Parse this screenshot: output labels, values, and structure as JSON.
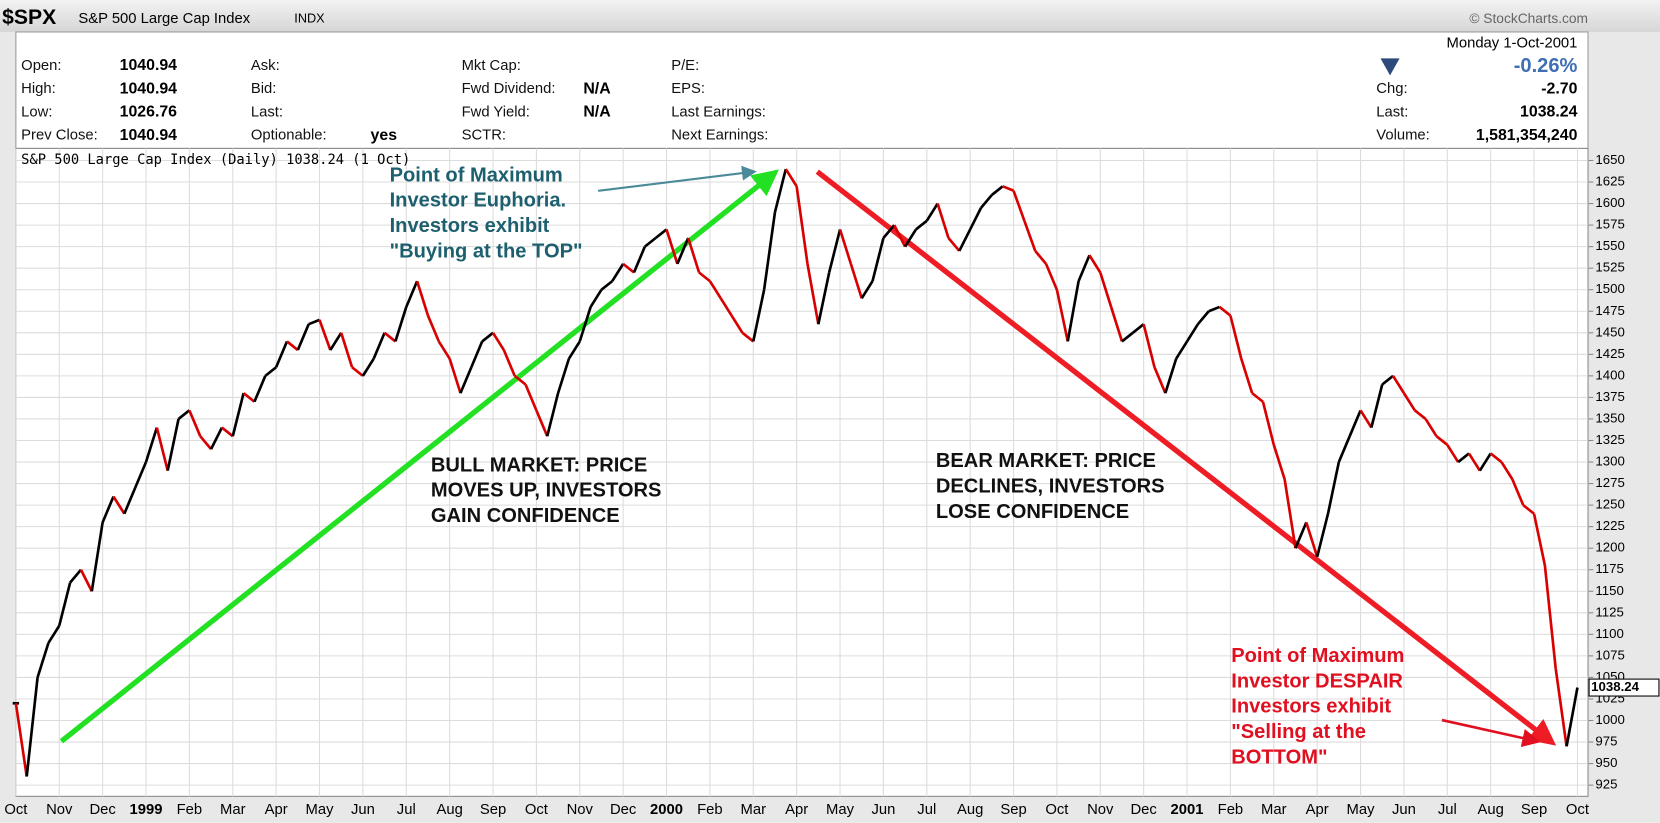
{
  "header": {
    "symbol": "$SPX",
    "name": "S&P 500 Large Cap Index",
    "exchange": "INDX",
    "copyright": "© StockCharts.com"
  },
  "info": {
    "columns": [
      [
        {
          "label": "Open:",
          "value": "1040.94"
        },
        {
          "label": "High:",
          "value": "1040.94"
        },
        {
          "label": "Low:",
          "value": "1026.76"
        },
        {
          "label": "Prev Close:",
          "value": "1040.94"
        }
      ],
      [
        {
          "label": "Ask:"
        },
        {
          "label": "Bid:"
        },
        {
          "label": "Last:"
        },
        {
          "label": "Optionable:",
          "value": "yes"
        }
      ],
      [
        {
          "label": "Mkt Cap:"
        },
        {
          "label": "Fwd Dividend:",
          "value": "N/A"
        },
        {
          "label": "Fwd Yield:",
          "value": "N/A"
        },
        {
          "label": "SCTR:"
        }
      ],
      [
        {
          "label": "P/E:"
        },
        {
          "label": "EPS:"
        },
        {
          "label": "Last Earnings:"
        },
        {
          "label": "Next Earnings:"
        }
      ]
    ],
    "quote": {
      "date": "Monday  1-Oct-2001",
      "change_pct": "-0.26%",
      "items": [
        {
          "label": "Chg:",
          "value": "-2.70"
        },
        {
          "label": "Last:",
          "value": "1038.24"
        },
        {
          "label": "Volume:",
          "value": "1,581,354,240"
        }
      ]
    }
  },
  "chart_data": {
    "type": "line",
    "title": "S&P 500 Large Cap Index (Daily) 1038.24 (1 Oct)",
    "categories": [
      "Oct",
      null,
      null,
      null,
      "Nov",
      null,
      null,
      null,
      "Dec",
      null,
      null,
      null,
      "1999",
      null,
      null,
      null,
      "Feb",
      null,
      null,
      null,
      "Mar",
      null,
      null,
      null,
      "Apr",
      null,
      null,
      null,
      "May",
      null,
      null,
      null,
      "Jun",
      null,
      null,
      null,
      "Jul",
      null,
      null,
      null,
      "Aug",
      null,
      null,
      null,
      "Sep",
      null,
      null,
      null,
      "Oct",
      null,
      null,
      null,
      "Nov",
      null,
      null,
      null,
      "Dec",
      null,
      null,
      null,
      "2000",
      null,
      null,
      null,
      "Feb",
      null,
      null,
      null,
      "Mar",
      null,
      null,
      null,
      "Apr",
      null,
      null,
      null,
      "May",
      null,
      null,
      null,
      "Jun",
      null,
      null,
      null,
      "Jul",
      null,
      null,
      null,
      "Aug",
      null,
      null,
      null,
      "Sep",
      null,
      null,
      null,
      "Oct",
      null,
      null,
      null,
      "Nov",
      null,
      null,
      null,
      "Dec",
      null,
      null,
      null,
      "2001",
      null,
      null,
      null,
      "Feb",
      null,
      null,
      null,
      "Mar",
      null,
      null,
      null,
      "Apr",
      null,
      null,
      null,
      "May",
      null,
      null,
      null,
      "Jun",
      null,
      null,
      null,
      "Jul",
      null,
      null,
      null,
      "Aug",
      null,
      null,
      null,
      "Sep",
      null,
      null,
      null,
      "Oct"
    ],
    "series": [
      {
        "name": "S&P 500 Large Cap Index",
        "color": "#000000",
        "down_color": "#d80000",
        "values": [
          1020,
          935,
          1050,
          1090,
          1110,
          1160,
          1175,
          1150,
          1230,
          1260,
          1240,
          1270,
          1300,
          1340,
          1290,
          1350,
          1360,
          1330,
          1315,
          1340,
          1330,
          1380,
          1370,
          1400,
          1410,
          1440,
          1430,
          1460,
          1465,
          1430,
          1450,
          1410,
          1400,
          1420,
          1450,
          1440,
          1480,
          1510,
          1470,
          1440,
          1420,
          1380,
          1410,
          1440,
          1450,
          1430,
          1400,
          1390,
          1360,
          1330,
          1380,
          1420,
          1440,
          1480,
          1500,
          1510,
          1530,
          1520,
          1550,
          1560,
          1570,
          1530,
          1560,
          1520,
          1510,
          1490,
          1470,
          1450,
          1440,
          1500,
          1590,
          1640,
          1620,
          1530,
          1460,
          1520,
          1570,
          1530,
          1490,
          1510,
          1560,
          1575,
          1550,
          1570,
          1580,
          1600,
          1560,
          1545,
          1570,
          1595,
          1610,
          1620,
          1615,
          1580,
          1545,
          1530,
          1500,
          1440,
          1510,
          1540,
          1520,
          1480,
          1440,
          1450,
          1460,
          1410,
          1380,
          1420,
          1440,
          1460,
          1475,
          1480,
          1470,
          1420,
          1380,
          1370,
          1320,
          1280,
          1200,
          1230,
          1190,
          1240,
          1300,
          1330,
          1360,
          1340,
          1390,
          1400,
          1380,
          1360,
          1350,
          1330,
          1320,
          1300,
          1310,
          1290,
          1310,
          1300,
          1280,
          1250,
          1240,
          1180,
          1060,
          970,
          1038.24
        ]
      }
    ],
    "ylim": [
      912,
      1664
    ],
    "yticks": [
      925,
      950,
      975,
      1000,
      1025,
      1050,
      1075,
      1100,
      1125,
      1150,
      1175,
      1200,
      1225,
      1250,
      1275,
      1300,
      1325,
      1350,
      1375,
      1400,
      1425,
      1450,
      1475,
      1500,
      1525,
      1550,
      1575,
      1600,
      1625,
      1650
    ],
    "grid": true,
    "annotations": [
      {
        "color": "#1d5f6e",
        "lines": [
          "Point of Maximum",
          "Investor Euphoria.",
          "Investors exhibit",
          "\"Buying at the TOP\""
        ]
      },
      {
        "color": "#111111",
        "lines": [
          "BULL MARKET: PRICE",
          "MOVES UP, INVESTORS",
          "GAIN CONFIDENCE"
        ]
      },
      {
        "color": "#111111",
        "lines": [
          "BEAR MARKET: PRICE",
          "DECLINES, INVESTORS",
          "LOSE CONFIDENCE"
        ]
      },
      {
        "color": "#e01020",
        "lines": [
          "Point of Maximum",
          "Investor DESPAIR",
          "Investors exhibit",
          "\"Selling at the",
          "BOTTOM\""
        ]
      }
    ]
  }
}
